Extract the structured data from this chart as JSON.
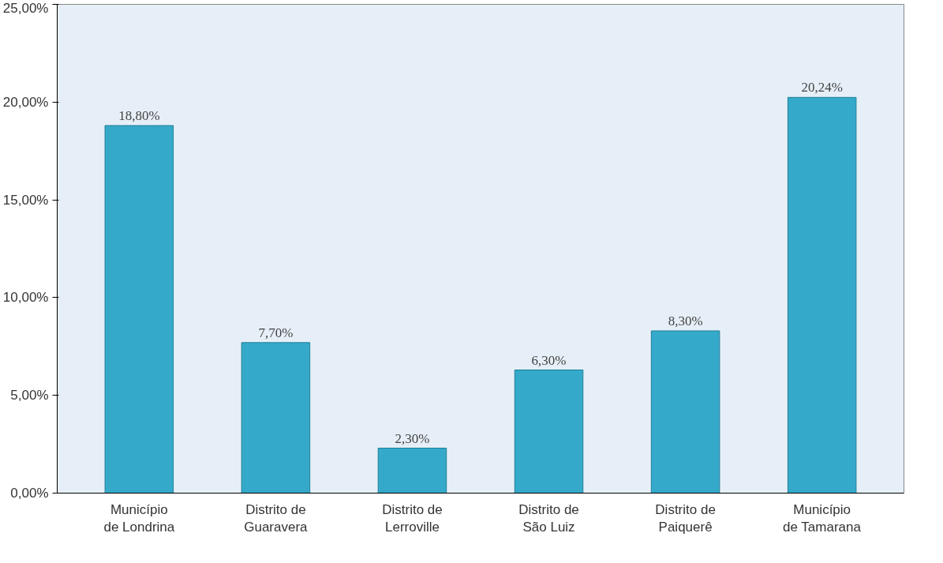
{
  "chart_data": {
    "type": "bar",
    "categories": [
      "Município de Londrina",
      "Distrito de Guaravera",
      "Distrito de Lerroville",
      "Distrito de São Luiz",
      "Distrito de Paiquerê",
      "Município de Tamarana"
    ],
    "values": [
      18.8,
      7.7,
      2.3,
      6.3,
      8.3,
      20.24
    ],
    "value_labels": [
      "18,80%",
      "7,70%",
      "2,30%",
      "6,30%",
      "8,30%",
      "20,24%"
    ],
    "color": "#35a9c9",
    "ylim": [
      0,
      25
    ],
    "yticks": [
      {
        "value": 0,
        "label": "0,00%"
      },
      {
        "value": 5,
        "label": "5,00%"
      },
      {
        "value": 10,
        "label": "10,00%"
      },
      {
        "value": 15,
        "label": "15,00%"
      },
      {
        "value": 20,
        "label": "20,00%"
      },
      {
        "value": 25,
        "label": "25,00%"
      }
    ],
    "grid": false
  }
}
